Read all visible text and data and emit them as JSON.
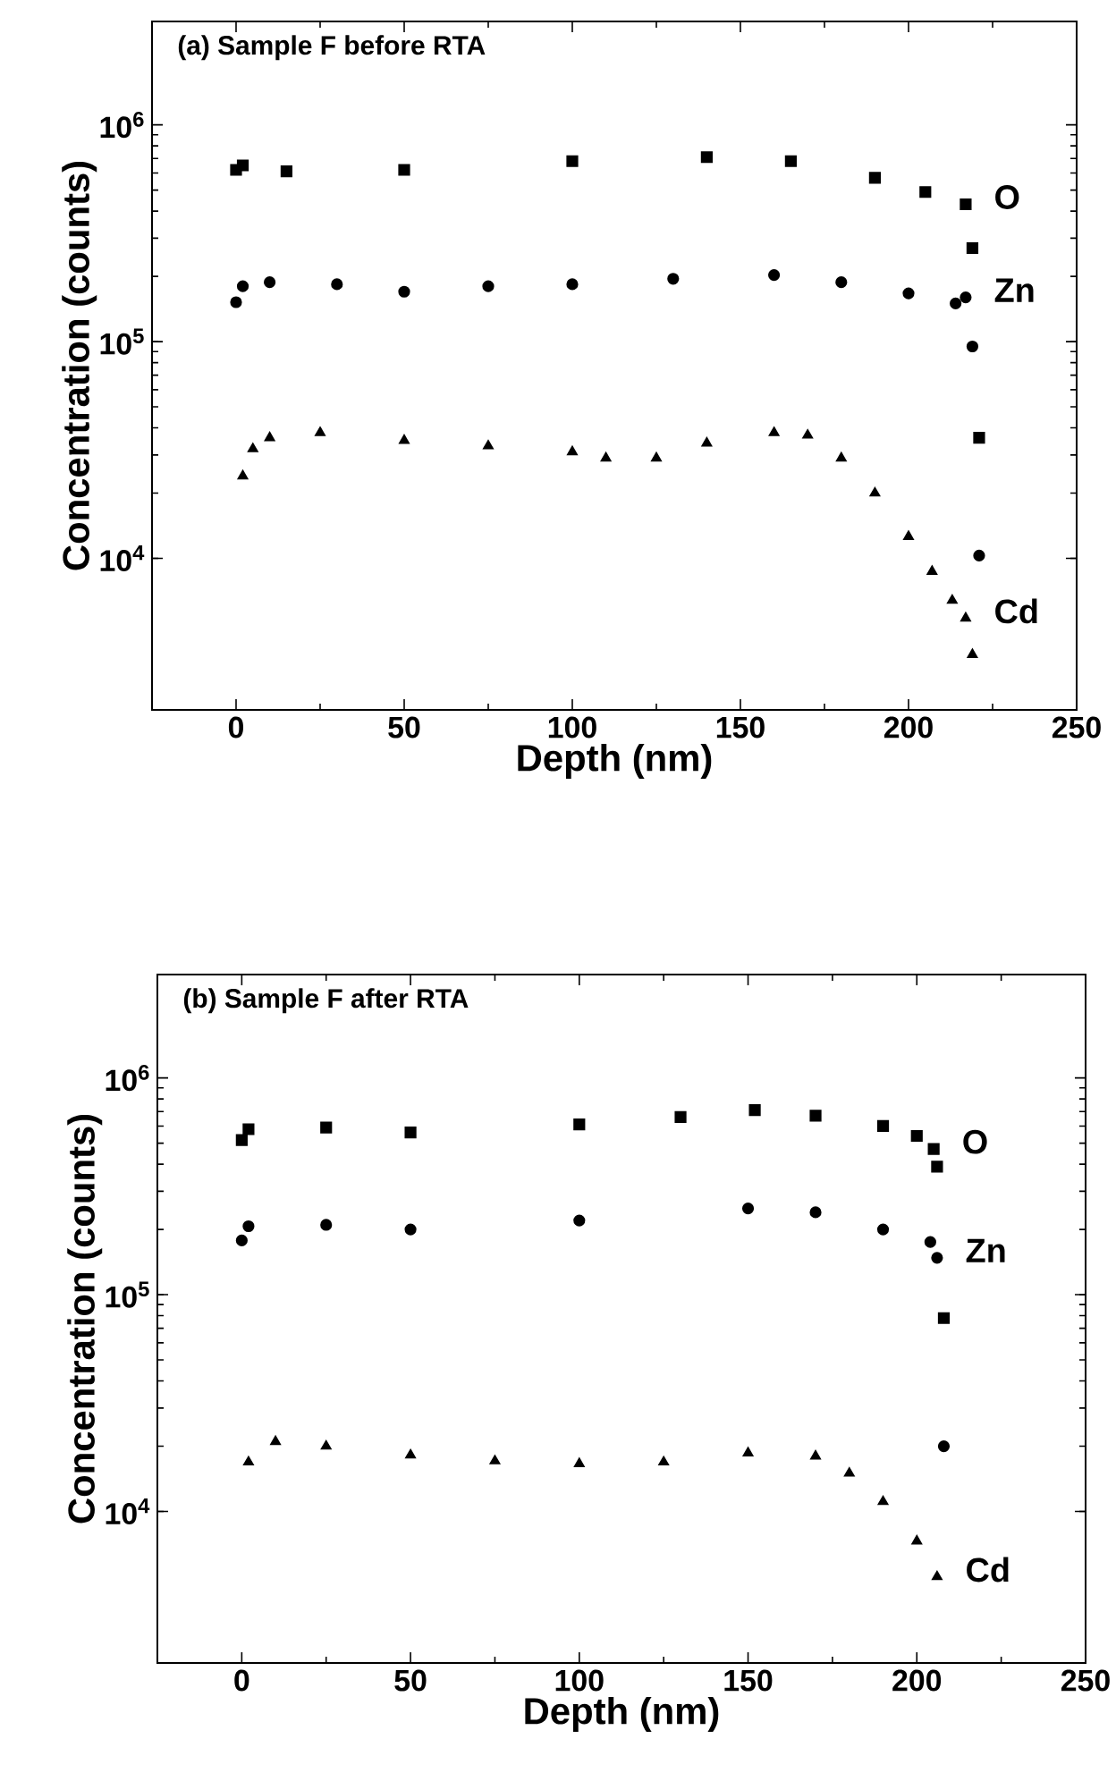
{
  "chart_data": [
    {
      "type": "scatter",
      "title": "(a) Sample F before RTA",
      "xlabel": "Depth (nm)",
      "ylabel": "Concentration (counts)",
      "log": "y",
      "xlim": [
        -25,
        250
      ],
      "ylim": [
        2000,
        3000000
      ],
      "xticks": [
        0,
        50,
        100,
        150,
        200,
        250
      ],
      "yticks": [
        {
          "value": 10000,
          "label": "10$^{4}$"
        },
        {
          "value": 100000,
          "label": "10$^{5}$"
        },
        {
          "value": 1000000,
          "label": "10$^{6}$"
        }
      ],
      "grid": false,
      "legend": "right",
      "series": [
        {
          "name": "O",
          "color": "#000000",
          "marker": "square",
          "x": [
            0,
            2,
            15,
            50,
            100,
            140,
            165,
            190,
            205,
            217,
            219,
            221
          ],
          "values": [
            620000,
            650000,
            610000,
            620000,
            680000,
            710000,
            680000,
            570000,
            490000,
            430000,
            270000,
            36000
          ]
        },
        {
          "name": "Zn",
          "color": "#000000",
          "marker": "circle",
          "x": [
            0,
            2,
            10,
            30,
            50,
            75,
            100,
            130,
            160,
            180,
            200,
            214,
            217,
            219,
            221
          ],
          "values": [
            152000,
            180000,
            188000,
            184000,
            170000,
            180000,
            184000,
            195000,
            203000,
            188000,
            167000,
            150000,
            160000,
            95000,
            10300
          ]
        },
        {
          "name": "Cd",
          "color": "#000000",
          "marker": "triangle",
          "x": [
            2,
            5,
            10,
            25,
            50,
            75,
            100,
            110,
            125,
            140,
            160,
            170,
            180,
            190,
            200,
            207,
            213,
            217,
            219
          ],
          "values": [
            24000,
            32000,
            36000,
            38000,
            35000,
            33000,
            31000,
            29000,
            29000,
            34000,
            38000,
            37000,
            29000,
            20000,
            12600,
            8700,
            6400,
            5300,
            3600
          ]
        }
      ]
    },
    {
      "type": "scatter",
      "title": "(b) Sample F after RTA",
      "xlabel": "Depth (nm)",
      "ylabel": "Concentration (counts)",
      "log": "y",
      "xlim": [
        -25,
        250
      ],
      "ylim": [
        2000,
        3000000
      ],
      "xticks": [
        0,
        50,
        100,
        150,
        200,
        250
      ],
      "yticks": [
        {
          "value": 10000,
          "label": "10$^{4}$"
        },
        {
          "value": 100000,
          "label": "10$^{5}$"
        },
        {
          "value": 1000000,
          "label": "10$^{6}$"
        }
      ],
      "grid": false,
      "legend": "right",
      "series": [
        {
          "name": "O",
          "color": "#000000",
          "marker": "square",
          "x": [
            0,
            2,
            25,
            50,
            100,
            130,
            152,
            170,
            190,
            200,
            205,
            206,
            208
          ],
          "values": [
            517000,
            580000,
            590000,
            560000,
            610000,
            660000,
            710000,
            670000,
            600000,
            540000,
            470000,
            390000,
            78000
          ]
        },
        {
          "name": "Zn",
          "color": "#000000",
          "marker": "circle",
          "x": [
            0,
            2,
            25,
            50,
            100,
            150,
            170,
            190,
            204,
            206,
            208
          ],
          "values": [
            178000,
            207000,
            210000,
            200000,
            220000,
            250000,
            240000,
            200000,
            175000,
            148000,
            20000
          ]
        },
        {
          "name": "Cd",
          "color": "#000000",
          "marker": "triangle",
          "x": [
            2,
            10,
            25,
            50,
            75,
            100,
            125,
            150,
            170,
            180,
            190,
            200,
            206
          ],
          "values": [
            16900,
            21000,
            20000,
            18200,
            17100,
            16600,
            16900,
            18600,
            18000,
            15000,
            11100,
            7300,
            5000
          ]
        }
      ]
    }
  ]
}
